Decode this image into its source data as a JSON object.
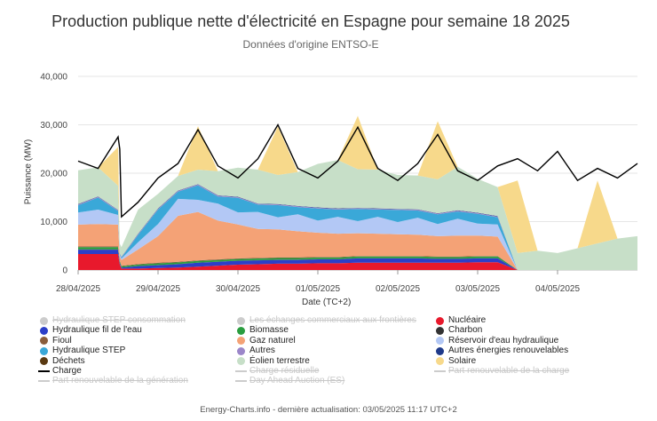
{
  "chart_data": {
    "type": "area",
    "title": "Production publique nette d'électricité en Espagne pour semaine 18 2025",
    "subtitle": "Données d'origine ENTSO-E",
    "xlabel": "Date (TC+2)",
    "ylabel": "Puissance (MW)",
    "ylim": [
      0,
      40000
    ],
    "yticks": [
      "0",
      "10,000",
      "20,000",
      "30,000",
      "40,000"
    ],
    "xticks": [
      "28/04/2025",
      "29/04/2025",
      "30/04/2025",
      "01/05/2025",
      "02/05/2025",
      "03/05/2025",
      "04/05/2025"
    ],
    "grid": true,
    "x_hours": [
      0,
      6,
      12,
      12.5,
      13,
      18,
      24,
      30,
      36,
      42,
      48,
      54,
      60,
      66,
      72,
      78,
      84,
      90,
      96,
      102,
      108,
      114,
      120,
      126,
      132,
      138,
      144,
      150,
      156,
      162,
      168
    ],
    "series": [
      {
        "name": "Nucléaire",
        "color": "#e8192c",
        "values": [
          3300,
          3300,
          3300,
          1200,
          300,
          300,
          400,
          500,
          700,
          900,
          1100,
          1200,
          1300,
          1300,
          1400,
          1400,
          1500,
          1500,
          1500,
          1500,
          1500,
          1500,
          1600,
          1600,
          null,
          null,
          null,
          null,
          null,
          null,
          null
        ]
      },
      {
        "name": "Hydraulique fil de l'eau",
        "color": "#2c3fc8",
        "values": [
          900,
          900,
          900,
          300,
          200,
          500,
          600,
          700,
          800,
          800,
          800,
          800,
          800,
          800,
          800,
          800,
          900,
          900,
          900,
          900,
          800,
          800,
          800,
          800,
          null,
          null,
          null,
          null,
          null,
          null,
          null
        ]
      },
      {
        "name": "Charbon",
        "color": "#333333",
        "values": [
          80,
          80,
          80,
          40,
          20,
          20,
          30,
          30,
          30,
          30,
          30,
          30,
          30,
          30,
          30,
          30,
          30,
          30,
          30,
          30,
          30,
          30,
          30,
          30,
          null,
          null,
          null,
          null,
          null,
          null,
          null
        ]
      },
      {
        "name": "Biomasse",
        "color": "#2a9d3f",
        "values": [
          450,
          450,
          450,
          300,
          250,
          300,
          350,
          350,
          350,
          350,
          350,
          350,
          350,
          350,
          350,
          350,
          350,
          350,
          350,
          350,
          350,
          350,
          350,
          350,
          null,
          null,
          null,
          null,
          null,
          null,
          null
        ]
      },
      {
        "name": "Fioul",
        "color": "#8b5e3c",
        "values": [
          150,
          150,
          150,
          120,
          100,
          120,
          120,
          120,
          120,
          120,
          120,
          120,
          120,
          120,
          120,
          120,
          120,
          120,
          120,
          120,
          120,
          120,
          120,
          120,
          null,
          null,
          null,
          null,
          null,
          null,
          null
        ]
      },
      {
        "name": "Gaz naturel",
        "color": "#f4a276",
        "values": [
          4500,
          4600,
          4500,
          800,
          1200,
          3000,
          5500,
          9500,
          10000,
          8000,
          7000,
          6000,
          5800,
          5400,
          5000,
          4800,
          4700,
          4600,
          4500,
          4400,
          4200,
          4300,
          4200,
          4000,
          null,
          null,
          null,
          null,
          null,
          null,
          null
        ]
      },
      {
        "name": "Réservoir d'eau hydraulique",
        "color": "#b3c8f5",
        "values": [
          2500,
          3000,
          2000,
          300,
          300,
          1500,
          2500,
          3500,
          2500,
          3500,
          2500,
          3500,
          2500,
          3500,
          2500,
          3500,
          2500,
          3500,
          2500,
          3500,
          2500,
          3500,
          2500,
          2500,
          null,
          null,
          null,
          null,
          null,
          null,
          null
        ]
      },
      {
        "name": "Hydraulique STEP",
        "color": "#3aa8d8",
        "values": [
          1500,
          2500,
          800,
          200,
          200,
          1500,
          3000,
          1500,
          3000,
          1500,
          3000,
          1500,
          2500,
          1500,
          2500,
          1500,
          2500,
          1500,
          2500,
          1500,
          2000,
          1500,
          2000,
          1500,
          null,
          null,
          null,
          null,
          null,
          null,
          null
        ]
      },
      {
        "name": "Autres",
        "color": "#9b86c9",
        "values": [
          150,
          150,
          150,
          100,
          100,
          150,
          150,
          150,
          150,
          150,
          150,
          150,
          150,
          150,
          150,
          150,
          150,
          150,
          150,
          150,
          150,
          150,
          150,
          150,
          null,
          null,
          null,
          null,
          null,
          null,
          null
        ]
      },
      {
        "name": "Autres énergies renouvelables",
        "color": "#1f3a8a",
        "values": [
          80,
          80,
          80,
          60,
          60,
          80,
          80,
          80,
          80,
          80,
          80,
          80,
          80,
          80,
          80,
          80,
          80,
          80,
          80,
          80,
          80,
          80,
          80,
          80,
          null,
          null,
          null,
          null,
          null,
          null,
          null
        ]
      },
      {
        "name": "Éolien terrestre",
        "color": "#c7dfc8",
        "values": [
          7000,
          6000,
          5000,
          2000,
          2000,
          5000,
          3000,
          3000,
          3000,
          5000,
          6000,
          7000,
          6000,
          7000,
          9000,
          10000,
          8000,
          8000,
          7000,
          7000,
          7000,
          9000,
          7000,
          6000,
          3500,
          4000,
          3500,
          4500,
          5500,
          6500,
          7000
        ]
      },
      {
        "name": "Solaire",
        "color": "#f7d98b",
        "values": [
          0,
          0,
          8000,
          0,
          0,
          0,
          0,
          0,
          9000,
          0,
          0,
          0,
          10000,
          0,
          0,
          0,
          11000,
          0,
          0,
          0,
          12000,
          0,
          0,
          0,
          15000,
          0,
          0,
          0,
          13000,
          0,
          0
        ]
      },
      {
        "name": "Charge",
        "color": "#000000",
        "values": [
          22500,
          21000,
          27500,
          25000,
          11000,
          14000,
          19000,
          22000,
          29000,
          21500,
          19000,
          23000,
          30000,
          21000,
          19000,
          22500,
          29500,
          21000,
          18500,
          22000,
          28000,
          20500,
          18500,
          21500,
          23000,
          20500,
          24500,
          18500,
          21000,
          19000,
          22000
        ]
      }
    ],
    "legend_placement": "bottom",
    "legend": [
      {
        "name": "Hydraulique STEP consommation",
        "color": "#cccccc",
        "visible": false,
        "marker": "dot"
      },
      {
        "name": "Hydraulique fil de l'eau",
        "color": "#2c3fc8",
        "visible": true,
        "marker": "dot"
      },
      {
        "name": "Fioul",
        "color": "#8b5e3c",
        "visible": true,
        "marker": "dot"
      },
      {
        "name": "Hydraulique STEP",
        "color": "#3aa8d8",
        "visible": true,
        "marker": "dot"
      },
      {
        "name": "Déchets",
        "color": "#5a3a12",
        "visible": true,
        "marker": "dot"
      },
      {
        "name": "Charge",
        "color": "#000000",
        "visible": true,
        "marker": "line"
      },
      {
        "name": "Part renouvelable de la génération",
        "color": "#cccccc",
        "visible": false,
        "marker": "line"
      },
      {
        "name": "Les échanges commerciaux aux frontières",
        "color": "#cccccc",
        "visible": false,
        "marker": "dot"
      },
      {
        "name": "Biomasse",
        "color": "#2a9d3f",
        "visible": true,
        "marker": "dot"
      },
      {
        "name": "Gaz naturel",
        "color": "#f4a276",
        "visible": true,
        "marker": "dot"
      },
      {
        "name": "Autres",
        "color": "#9b86c9",
        "visible": true,
        "marker": "dot"
      },
      {
        "name": "Éolien terrestre",
        "color": "#c7dfc8",
        "visible": true,
        "marker": "dot"
      },
      {
        "name": "Charge résiduelle",
        "color": "#cccccc",
        "visible": false,
        "marker": "line"
      },
      {
        "name": "Day Ahead Auction (ES)",
        "color": "#cccccc",
        "visible": false,
        "marker": "line"
      },
      {
        "name": "Nucléaire",
        "color": "#e8192c",
        "visible": true,
        "marker": "dot"
      },
      {
        "name": "Charbon",
        "color": "#333333",
        "visible": true,
        "marker": "dot"
      },
      {
        "name": "Réservoir d'eau hydraulique",
        "color": "#b3c8f5",
        "visible": true,
        "marker": "dot"
      },
      {
        "name": "Autres énergies renouvelables",
        "color": "#1f3a8a",
        "visible": true,
        "marker": "dot"
      },
      {
        "name": "Solaire",
        "color": "#f7d98b",
        "visible": true,
        "marker": "dot"
      },
      {
        "name": "Part renouvelable de la charge",
        "color": "#cccccc",
        "visible": false,
        "marker": "line"
      }
    ]
  },
  "footer": "Energy-Charts.info - dernière actualisation: 03/05/2025 11:17 UTC+2"
}
